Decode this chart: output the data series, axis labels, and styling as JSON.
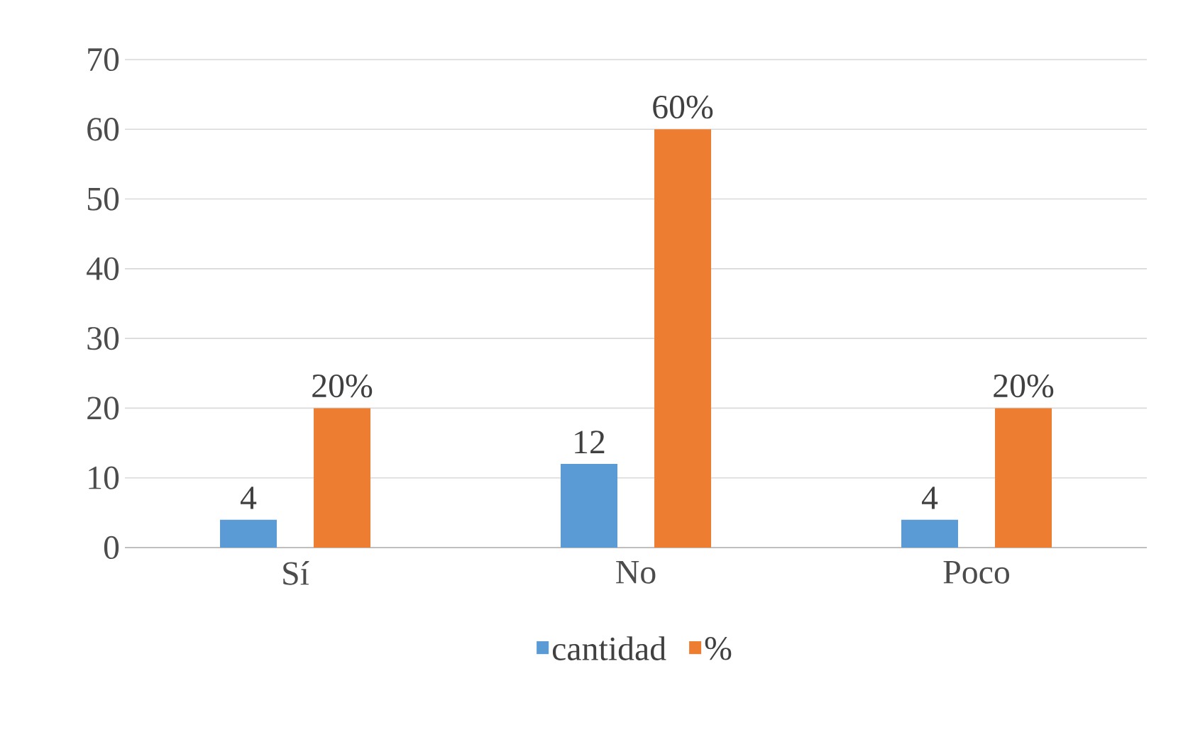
{
  "chart_data": {
    "type": "bar",
    "categories": [
      "Sí",
      "No",
      "Poco"
    ],
    "series": [
      {
        "name": "cantidad",
        "color": "#5b9bd5",
        "values": [
          4,
          12,
          4
        ],
        "value_labels": [
          "4",
          "12",
          "4"
        ]
      },
      {
        "name": "%",
        "color": "#ed7d31",
        "values": [
          20,
          60,
          20
        ],
        "value_labels": [
          "20%",
          "60%",
          "20%"
        ]
      }
    ],
    "ylim": [
      0,
      70
    ],
    "yticks": [
      0,
      10,
      20,
      30,
      40,
      50,
      60,
      70
    ],
    "grid": "y",
    "legend": "bottom"
  }
}
